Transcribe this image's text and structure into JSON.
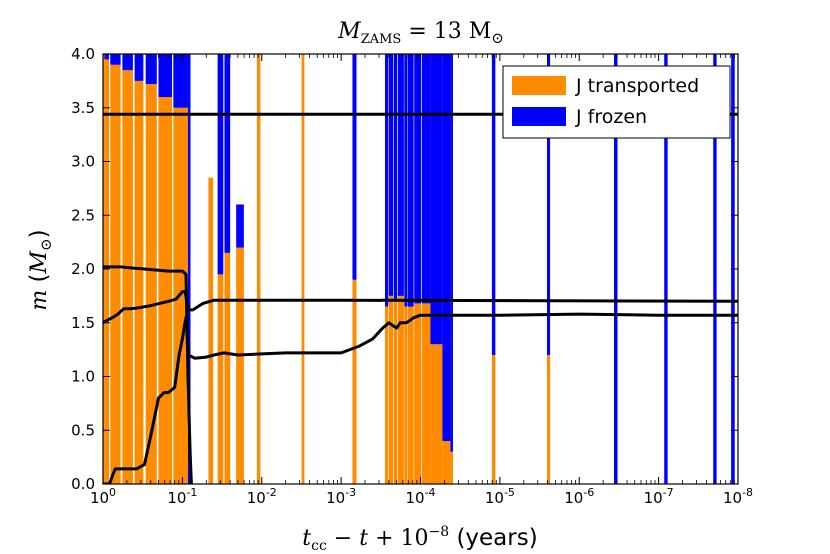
{
  "chart_data": {
    "type": "area",
    "title": "M_ZAMS = 13 M_⊙",
    "xlabel": "t_cc − t + 10^−8 (years)",
    "ylabel": "m (M_⊙)",
    "xscale": "log-reversed",
    "xlim": [
      1,
      1e-08
    ],
    "ylim": [
      0,
      4.0
    ],
    "grid": false,
    "legend_position": "top-right",
    "x_ticks": [
      {
        "value": 1,
        "mant": "10",
        "exp": "0"
      },
      {
        "value": 0.1,
        "mant": "10",
        "exp": "-1"
      },
      {
        "value": 0.01,
        "mant": "10",
        "exp": "-2"
      },
      {
        "value": 0.001,
        "mant": "10",
        "exp": "-3"
      },
      {
        "value": 0.0001,
        "mant": "10",
        "exp": "-4"
      },
      {
        "value": 1e-05,
        "mant": "10",
        "exp": "-5"
      },
      {
        "value": 1e-06,
        "mant": "10",
        "exp": "-6"
      },
      {
        "value": 1e-07,
        "mant": "10",
        "exp": "-7"
      },
      {
        "value": 1e-08,
        "mant": "10",
        "exp": "-8"
      }
    ],
    "y_ticks": [
      "0.0",
      "0.5",
      "1.0",
      "1.5",
      "2.0",
      "2.5",
      "3.0",
      "3.5",
      "4.0"
    ],
    "legend": [
      {
        "label": "J transported",
        "color": "#ff8c00"
      },
      {
        "label": "J frozen",
        "color": "#0000ff"
      }
    ],
    "colors": {
      "transported": "#ff8c00",
      "frozen": "#0000ff",
      "lines": "#000000"
    },
    "regions": [
      {
        "x_start": 1.0,
        "x_end": 0.96,
        "boundary": 4.0,
        "frozen_top": 4.0
      },
      {
        "x_start": 0.96,
        "x_end": 0.84,
        "boundary": 3.95,
        "frozen_top": 4.0
      },
      {
        "x_start": 0.81,
        "x_end": 0.6,
        "boundary": 3.9,
        "frozen_top": 4.0
      },
      {
        "x_start": 0.57,
        "x_end": 0.42,
        "boundary": 3.85,
        "frozen_top": 4.0
      },
      {
        "x_start": 0.4,
        "x_end": 0.31,
        "boundary": 3.75,
        "frozen_top": 4.0
      },
      {
        "x_start": 0.29,
        "x_end": 0.21,
        "boundary": 3.72,
        "frozen_top": 4.0
      },
      {
        "x_start": 0.2,
        "x_end": 0.135,
        "boundary": 3.6,
        "frozen_top": 4.0
      },
      {
        "x_start": 0.13,
        "x_end": 0.085,
        "boundary": 3.5,
        "frozen_top": 4.0
      },
      {
        "x_start": 0.085,
        "x_end": 0.079,
        "boundary": 0.0,
        "frozen_top": 4.0
      },
      {
        "x_start": 0.047,
        "x_end": 0.041,
        "boundary": 2.85,
        "frozen_top": 2.85
      },
      {
        "x_start": 0.036,
        "x_end": 0.0305,
        "boundary": 1.95,
        "frozen_top": 4.0
      },
      {
        "x_start": 0.0295,
        "x_end": 0.025,
        "boundary": 2.15,
        "frozen_top": 4.0
      },
      {
        "x_start": 0.021,
        "x_end": 0.0168,
        "boundary": 2.2,
        "frozen_top": 2.6
      },
      {
        "x_start": 0.0115,
        "x_end": 0.0104,
        "boundary": 4.0,
        "frozen_top": 4.0
      },
      {
        "x_start": 0.00315,
        "x_end": 0.0029,
        "boundary": 4.0,
        "frozen_top": 4.0
      },
      {
        "x_start": 0.00072,
        "x_end": 0.00064,
        "boundary": 1.9,
        "frozen_top": 4.0
      },
      {
        "x_start": 0.00028,
        "x_end": 0.000254,
        "boundary": 1.65,
        "frozen_top": 4.0
      },
      {
        "x_start": 0.00025,
        "x_end": 0.000222,
        "boundary": 1.75,
        "frozen_top": 4.0
      },
      {
        "x_start": 0.000218,
        "x_end": 0.000196,
        "boundary": 1.7,
        "frozen_top": 4.0
      },
      {
        "x_start": 0.000192,
        "x_end": 0.000162,
        "boundary": 1.75,
        "frozen_top": 4.0
      },
      {
        "x_start": 0.00016,
        "x_end": 0.000146,
        "boundary": 1.65,
        "frozen_top": 4.0
      },
      {
        "x_start": 0.000144,
        "x_end": 0.000122,
        "boundary": 1.65,
        "frozen_top": 4.0
      },
      {
        "x_start": 0.00012,
        "x_end": 9.8e-05,
        "boundary": 1.68,
        "frozen_top": 4.0
      },
      {
        "x_start": 9.6e-05,
        "x_end": 7.5e-05,
        "boundary": 1.68,
        "frozen_top": 4.0
      },
      {
        "x_start": 7.5e-05,
        "x_end": 5.3e-05,
        "boundary": 1.3,
        "frozen_top": 4.0
      },
      {
        "x_start": 5.3e-05,
        "x_end": 4.2e-05,
        "boundary": 0.4,
        "frozen_top": 4.0
      },
      {
        "x_start": 4.2e-05,
        "x_end": 3.9e-05,
        "boundary": 0.3,
        "frozen_top": 4.0
      },
      {
        "x_start": 2.55e-06,
        "x_end": 2.33e-06,
        "boundary": 1.2,
        "frozen_top": 4.0
      },
      {
        "x_start": 1.26e-05,
        "x_end": 1.14e-05,
        "boundary": 1.2,
        "frozen_top": 4.0
      },
      {
        "x_start": 3.65e-07,
        "x_end": 3.3e-07,
        "boundary": 0.0,
        "frozen_top": 4.0
      },
      {
        "x_start": 8.5e-08,
        "x_end": 7.7e-08,
        "boundary": 0.0,
        "frozen_top": 4.0
      },
      {
        "x_start": 2.05e-08,
        "x_end": 1.86e-08,
        "boundary": 0.0,
        "frozen_top": 4.0
      },
      {
        "x_start": 1.22e-08,
        "x_end": 1.1e-08,
        "boundary": 0.0,
        "frozen_top": 4.0
      }
    ],
    "series": [
      {
        "points": [
          [
            1.0,
            3.44
          ],
          [
            1e-08,
            3.44
          ]
        ]
      },
      {
        "points": [
          [
            1.0,
            2.02
          ],
          [
            0.6,
            2.02
          ],
          [
            0.45,
            2.01
          ],
          [
            0.3,
            2.0
          ],
          [
            0.15,
            1.98
          ],
          [
            0.1,
            1.98
          ],
          [
            0.09,
            1.95
          ],
          [
            0.085,
            1.0
          ],
          [
            0.08,
            0.3
          ],
          [
            0.077,
            0.0
          ]
        ]
      },
      {
        "points": [
          [
            1.0,
            1.5
          ],
          [
            0.85,
            1.53
          ],
          [
            0.75,
            1.55
          ],
          [
            0.65,
            1.58
          ],
          [
            0.55,
            1.63
          ],
          [
            0.45,
            1.63
          ],
          [
            0.35,
            1.64
          ],
          [
            0.25,
            1.66
          ],
          [
            0.15,
            1.7
          ],
          [
            0.12,
            1.72
          ],
          [
            0.1,
            1.79
          ],
          [
            0.092,
            1.79
          ],
          [
            0.088,
            1.7
          ],
          [
            0.082,
            1.62
          ],
          [
            0.074,
            1.62
          ],
          [
            0.055,
            1.68
          ],
          [
            0.04,
            1.71
          ],
          [
            0.001,
            1.71
          ],
          [
            1e-08,
            1.7
          ]
        ]
      },
      {
        "points": [
          [
            1.0,
            0.0
          ],
          [
            0.83,
            0.0
          ],
          [
            0.74,
            0.1
          ],
          [
            0.7,
            0.14
          ],
          [
            0.5,
            0.14
          ],
          [
            0.38,
            0.14
          ],
          [
            0.3,
            0.18
          ],
          [
            0.25,
            0.45
          ],
          [
            0.2,
            0.8
          ],
          [
            0.17,
            0.85
          ],
          [
            0.15,
            0.85
          ],
          [
            0.125,
            0.9
          ],
          [
            0.11,
            1.2
          ],
          [
            0.1,
            1.35
          ],
          [
            0.095,
            1.45
          ],
          [
            0.09,
            1.55
          ],
          [
            0.088,
            1.45
          ],
          [
            0.084,
            1.2
          ],
          [
            0.07,
            1.17
          ],
          [
            0.05,
            1.18
          ],
          [
            0.04,
            1.2
          ],
          [
            0.03,
            1.22
          ],
          [
            0.02,
            1.2
          ],
          [
            0.01,
            1.21
          ],
          [
            0.005,
            1.22
          ],
          [
            0.001,
            1.22
          ],
          [
            0.0006,
            1.28
          ],
          [
            0.0004,
            1.35
          ],
          [
            0.0003,
            1.45
          ],
          [
            0.00025,
            1.5
          ],
          [
            0.0002,
            1.45
          ],
          [
            0.00018,
            1.5
          ],
          [
            0.00015,
            1.5
          ],
          [
            0.00012,
            1.55
          ],
          [
            0.0001,
            1.57
          ],
          [
            5e-05,
            1.57
          ],
          [
            1e-05,
            1.57
          ],
          [
            1e-06,
            1.58
          ],
          [
            1e-07,
            1.57
          ],
          [
            1e-08,
            1.57
          ]
        ]
      }
    ]
  }
}
